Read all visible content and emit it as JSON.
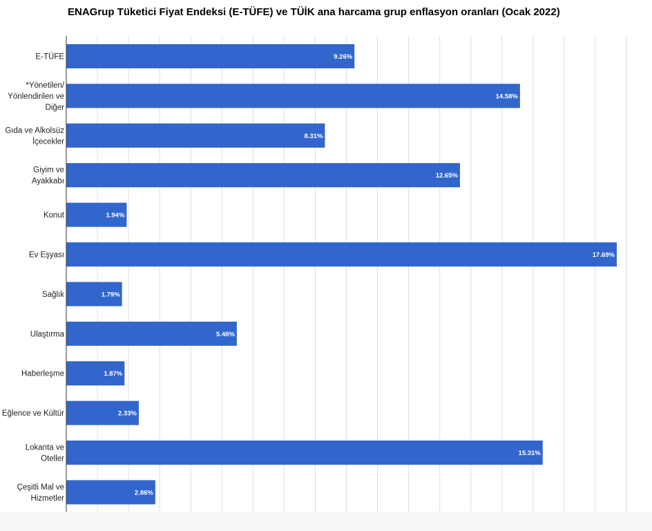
{
  "chart_data": {
    "type": "bar",
    "orientation": "horizontal",
    "title": "ENAGrup Tüketici Fiyat Endeksi (E-TÜFE) ve TÜİK ana harcama grup enflasyon oranları (Ocak 2022)",
    "xlabel": "",
    "ylabel": "",
    "xlim": [
      0,
      18
    ],
    "grid": true,
    "legend": "none",
    "bar_color": "#3366cc",
    "categories": [
      [
        "E-TÜFE"
      ],
      [
        "*Yönetilen/",
        "Yönlendirilen ve",
        "Diğer"
      ],
      [
        "Gıda ve Alkolsüz",
        "İçecekler"
      ],
      [
        "Giyim ve",
        "Ayakkabı"
      ],
      [
        "Konut"
      ],
      [
        "Ev Eşyası"
      ],
      [
        "Sağlık"
      ],
      [
        "Ulaştırma"
      ],
      [
        "Haberleşme"
      ],
      [
        "Eğlence ve Kültür"
      ],
      [
        "Lokanta ve",
        "Oteller"
      ],
      [
        "Çeşitli Mal ve",
        "Hizmetler"
      ]
    ],
    "values": [
      9.26,
      14.58,
      8.31,
      12.65,
      1.94,
      17.69,
      1.79,
      5.48,
      1.87,
      2.33,
      15.31,
      2.86
    ],
    "value_labels": [
      "9.26%",
      "14.58%",
      "8.31%",
      "12.65%",
      "1.94%",
      "17.69%",
      "1.79%",
      "5.48%",
      "1.87%",
      "2.33%",
      "15.31%",
      "2.86%"
    ]
  }
}
